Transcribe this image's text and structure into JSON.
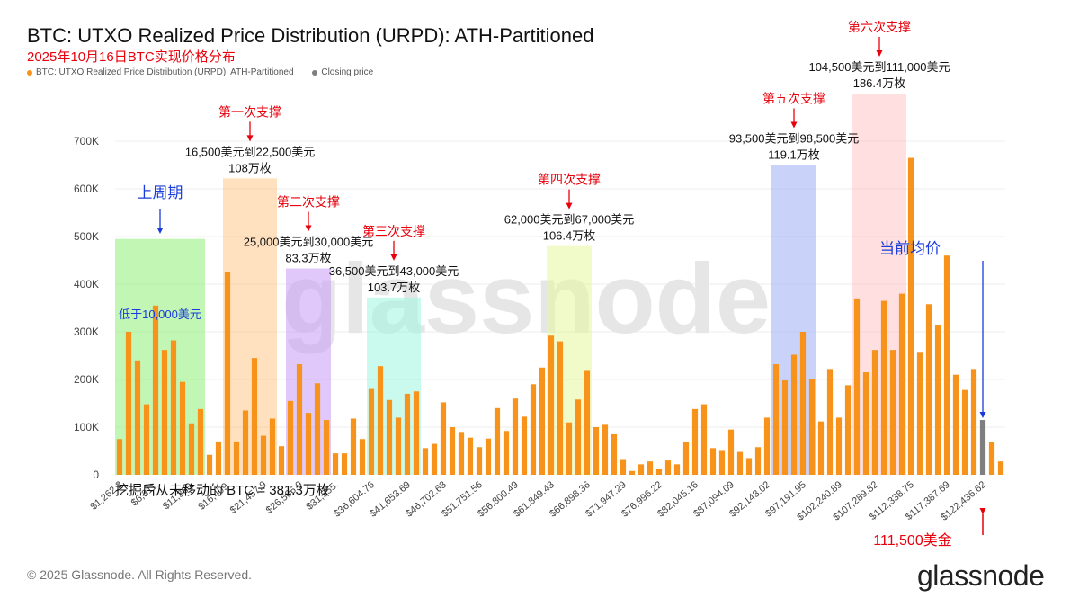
{
  "header": {
    "title": "BTC: UTXO Realized Price Distribution (URPD): ATH-Partitioned",
    "subtitle": "2025年10月16日BTC实现价格分布"
  },
  "legend": [
    {
      "label": "BTC: UTXO Realized Price Distribution (URPD): ATH-Partitioned",
      "color": "#f7931a"
    },
    {
      "label": "Closing price",
      "color": "#7f7f7f"
    }
  ],
  "footer": {
    "copyright": "© 2025 Glassnode. All Rights Reserved.",
    "brand": "glassnode",
    "watermark": "glassnode"
  },
  "chart_data": {
    "type": "bar",
    "ylim": [
      0,
      700000
    ],
    "yticks": [
      0,
      100000,
      200000,
      300000,
      400000,
      500000,
      600000,
      700000
    ],
    "ytick_labels": [
      "0",
      "100K",
      "200K",
      "300K",
      "400K",
      "500K",
      "600K",
      "700K"
    ],
    "xtick_labels": [
      "$1,262.2",
      "$6,311.",
      "$11,360.",
      "$16,409.",
      "$21,457.9",
      "$26,506.9",
      "$31,555.",
      "$36,604.76",
      "$41,653.69",
      "$46,702.63",
      "$51,751.56",
      "$56,800.49",
      "$61,849.43",
      "$66,898.36",
      "$71,947.29",
      "$76,996.22",
      "$82,045.16",
      "$87,094.09",
      "$92,143.02",
      "$97,191.95",
      "$102,240.89",
      "$107,289.82",
      "$112,338.75",
      "$117,387.69",
      "$122,436.62"
    ],
    "bar_color": "#f7931a",
    "closing_color": "#7f7f7f",
    "closing_index": 96,
    "values": [
      75000,
      300000,
      240000,
      148000,
      355000,
      262000,
      282000,
      195000,
      108000,
      138000,
      42000,
      70000,
      425000,
      70000,
      135000,
      245000,
      82000,
      118000,
      60000,
      155000,
      232000,
      130000,
      192000,
      115000,
      45000,
      45000,
      118000,
      75000,
      180000,
      228000,
      157000,
      120000,
      170000,
      175000,
      56000,
      65000,
      152000,
      100000,
      90000,
      78000,
      58000,
      76000,
      140000,
      92000,
      160000,
      122000,
      190000,
      225000,
      292000,
      280000,
      110000,
      158000,
      218000,
      100000,
      105000,
      85000,
      33000,
      8000,
      22000,
      28000,
      12000,
      30000,
      22000,
      68000,
      138000,
      148000,
      56000,
      52000,
      95000,
      48000,
      35000,
      58000,
      120000,
      232000,
      198000,
      252000,
      300000,
      200000,
      112000,
      222000,
      120000,
      188000,
      370000,
      215000,
      262000,
      365000,
      262000,
      380000,
      665000,
      258000,
      358000,
      315000,
      460000,
      210000,
      178000,
      222000,
      115000,
      68000,
      28000
    ],
    "zones": [
      {
        "label": "低于10,000美元",
        "color": "#90ee78",
        "start": 0,
        "end": 9,
        "top": 495000
      },
      {
        "range": "16,500美元到22,500美元",
        "amount": "108万枚",
        "color": "#ffc98a",
        "start": 12,
        "end": 17,
        "top": 622000
      },
      {
        "range": "25,000美元到30,000美元",
        "amount": "83.3万枚",
        "color": "#c79cf5",
        "start": 19,
        "end": 23,
        "top": 433000
      },
      {
        "range": "36,500美元到43,000美元",
        "amount": "103.7万枚",
        "color": "#9cf5df",
        "start": 28,
        "end": 33,
        "top": 372000
      },
      {
        "range": "62,000美元到67,000美元",
        "amount": "106.4万枚",
        "color": "#e6f59c",
        "start": 48,
        "end": 52,
        "top": 480000
      },
      {
        "range": "93,500美元到98,500美元",
        "amount": "119.1万枚",
        "color": "#9caff5",
        "start": 73,
        "end": 77,
        "top": 650000
      },
      {
        "range": "104,500美元到111,000美元",
        "amount": "186.4万枚",
        "color": "#ffc4c4",
        "start": 82,
        "end": 87,
        "top": 800000
      }
    ],
    "annotations": {
      "prev_cycle": "上周期",
      "support1": "第一次支撑",
      "support2": "第二次支撑",
      "support3": "第三次支撑",
      "support4": "第四次支撑",
      "support5": "第五次支撑",
      "support6": "第六次支撑",
      "current_avg": "当前均价",
      "current_price": "111,500美金",
      "unmoved": "挖掘后从未移动的 BTC = 381.3万枚"
    }
  }
}
